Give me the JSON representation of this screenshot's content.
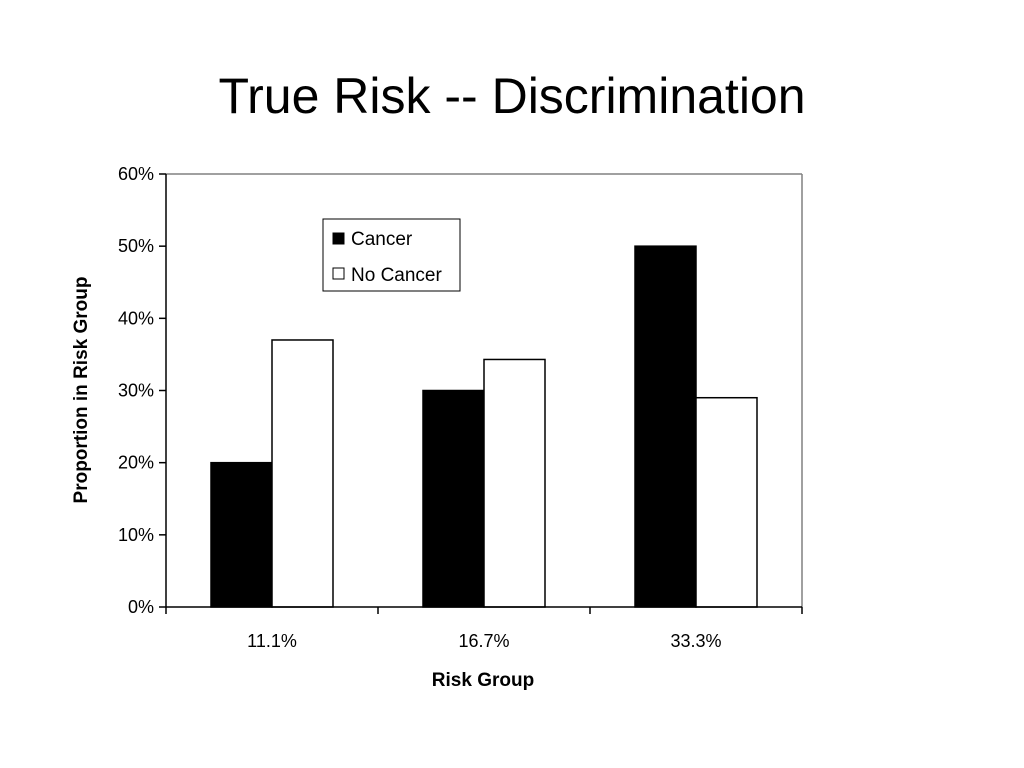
{
  "chart_data": {
    "type": "bar",
    "title": "True Risk -- Discrimination",
    "xlabel": "Risk Group",
    "ylabel": "Proportion in Risk Group",
    "categories": [
      "11.1%",
      "16.7%",
      "33.3%"
    ],
    "series": [
      {
        "name": "Cancer",
        "values": [
          0.2,
          0.3,
          0.5
        ],
        "color": "#000000"
      },
      {
        "name": "No Cancer",
        "values": [
          0.37,
          0.343,
          0.29
        ],
        "color": "#ffffff"
      }
    ],
    "ylim": [
      0,
      0.6
    ],
    "yticks": [
      0,
      0.1,
      0.2,
      0.3,
      0.4,
      0.5,
      0.6
    ],
    "ytick_labels": [
      "0%",
      "10%",
      "20%",
      "30%",
      "40%",
      "50%",
      "60%"
    ],
    "grid": false,
    "legend_position": "top-center"
  }
}
